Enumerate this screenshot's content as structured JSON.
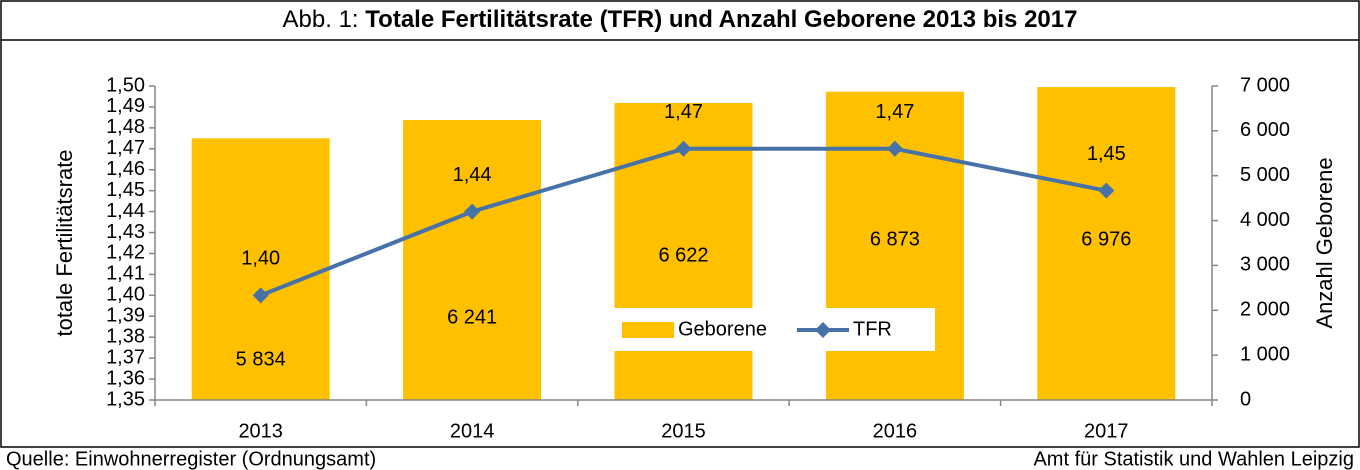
{
  "chart_data": {
    "type": "bar_line",
    "title_prefix": "Abb. 1:",
    "title": "Totale Fertilitätsrate (TFR) und Anzahl Geborene 2013 bis 2017",
    "y_label": "totale Fertilitätsrate",
    "y2_label": "Anzahl Geborene",
    "categories": [
      "2013",
      "2014",
      "2015",
      "2016",
      "2017"
    ],
    "series": [
      {
        "name": "Geborene",
        "type": "bar",
        "axis": "y2",
        "color": "#ffc000",
        "values": [
          5834,
          6241,
          6622,
          6873,
          6976
        ],
        "value_labels": [
          "5 834",
          "6 241",
          "6 622",
          "6 873",
          "6 976"
        ]
      },
      {
        "name": "TFR",
        "type": "line",
        "axis": "y",
        "color": "#4672a8",
        "values": [
          1.4,
          1.44,
          1.47,
          1.47,
          1.45
        ],
        "value_labels": [
          "1,40",
          "1,44",
          "1,47",
          "1,47",
          "1,45"
        ]
      }
    ],
    "ylim": [
      1.35,
      1.5
    ],
    "yticks": [
      {
        "value": 1.35,
        "label": "1,35"
      },
      {
        "value": 1.36,
        "label": "1,36"
      },
      {
        "value": 1.37,
        "label": "1,37"
      },
      {
        "value": 1.38,
        "label": "1,38"
      },
      {
        "value": 1.39,
        "label": "1,39"
      },
      {
        "value": 1.4,
        "label": "1,40"
      },
      {
        "value": 1.41,
        "label": "1,41"
      },
      {
        "value": 1.42,
        "label": "1,42"
      },
      {
        "value": 1.43,
        "label": "1,43"
      },
      {
        "value": 1.44,
        "label": "1,44"
      },
      {
        "value": 1.45,
        "label": "1,45"
      },
      {
        "value": 1.46,
        "label": "1,46"
      },
      {
        "value": 1.47,
        "label": "1,47"
      },
      {
        "value": 1.48,
        "label": "1,48"
      },
      {
        "value": 1.49,
        "label": "1,49"
      },
      {
        "value": 1.5,
        "label": "1,50"
      }
    ],
    "y2lim": [
      0,
      7000
    ],
    "y2ticks": [
      0,
      {
        "value": 1000,
        "label": "1 000"
      },
      {
        "value": 2000,
        "label": "2 000"
      },
      {
        "value": 3000,
        "label": "3 000"
      },
      {
        "value": 4000,
        "label": "4 000"
      },
      {
        "value": 5000,
        "label": "5 000"
      },
      {
        "value": 6000,
        "label": "6 000"
      },
      {
        "value": 7000,
        "label": "7 000"
      }
    ],
    "legend": "bottom-center",
    "source": "Quelle:   Einwohnerregister (Ordnungsamt)",
    "publisher": "Amt für Statistik und Wahlen Leipzig"
  }
}
